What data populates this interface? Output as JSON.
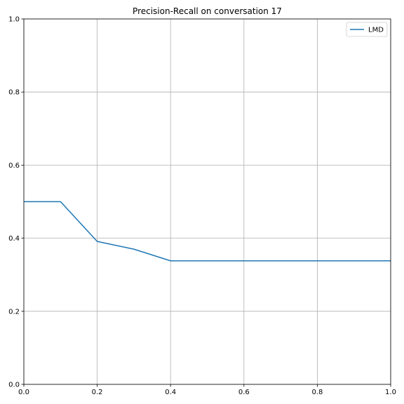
{
  "chart_data": {
    "type": "line",
    "title": "Precision-Recall on conversation 17",
    "xlabel": "",
    "ylabel": "",
    "xlim": [
      0,
      1
    ],
    "ylim": [
      0,
      1
    ],
    "grid": true,
    "legend_position": "top-right",
    "x_ticks": [
      "0.0",
      "0.2",
      "0.4",
      "0.6",
      "0.8",
      "1.0"
    ],
    "y_ticks": [
      "0.0",
      "0.2",
      "0.4",
      "0.6",
      "0.8",
      "1.0"
    ],
    "series": [
      {
        "name": "LMD",
        "color": "#1f77b4",
        "x": [
          0.0,
          0.1,
          0.2,
          0.3,
          0.4,
          0.5,
          0.6,
          0.7,
          0.8,
          0.9,
          1.0
        ],
        "y": [
          0.5,
          0.5,
          0.391,
          0.37,
          0.338,
          0.338,
          0.338,
          0.338,
          0.338,
          0.338,
          0.338
        ]
      }
    ]
  }
}
